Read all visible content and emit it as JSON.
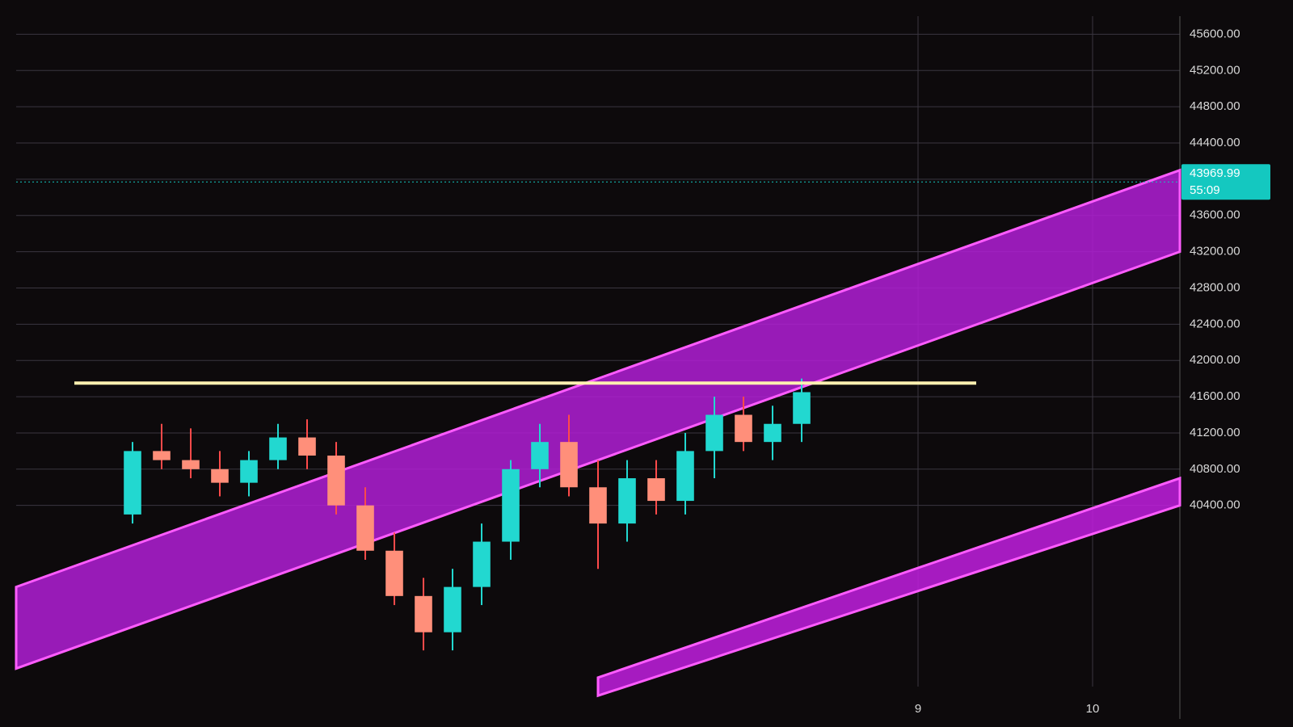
{
  "chart_data": {
    "type": "candlestick",
    "ylim": [
      38400,
      45800
    ],
    "yticks": [
      {
        "value": 40400,
        "label": "40400.00"
      },
      {
        "value": 40800,
        "label": "40800.00"
      },
      {
        "value": 41200,
        "label": "41200.00"
      },
      {
        "value": 41600,
        "label": "41600.00"
      },
      {
        "value": 42000,
        "label": "42000.00"
      },
      {
        "value": 42400,
        "label": "42400.00"
      },
      {
        "value": 42800,
        "label": "42800.00"
      },
      {
        "value": 43200,
        "label": "43200.00"
      },
      {
        "value": 43600,
        "label": "43600.00"
      },
      {
        "value": 44000,
        "label": "44000.00"
      },
      {
        "value": 44400,
        "label": "44400.00"
      },
      {
        "value": 44800,
        "label": "44800.00"
      },
      {
        "value": 45200,
        "label": "45200.00"
      },
      {
        "value": 45600,
        "label": "45600.00"
      }
    ],
    "xlim": [
      0,
      40
    ],
    "xticks": [
      {
        "value": 31,
        "label": "9"
      },
      {
        "value": 37,
        "label": "10"
      }
    ],
    "grid": true,
    "up_color": "#22d8d0",
    "down_color": "#ff8f7a",
    "down_wick_color": "#ff4a4a",
    "candles": [
      {
        "x": 4,
        "open": 40300,
        "high": 41100,
        "low": 40200,
        "close": 41000
      },
      {
        "x": 5,
        "open": 41000,
        "high": 41300,
        "low": 40800,
        "close": 40900
      },
      {
        "x": 6,
        "open": 40900,
        "high": 41250,
        "low": 40700,
        "close": 40800
      },
      {
        "x": 7,
        "open": 40800,
        "high": 41000,
        "low": 40500,
        "close": 40650
      },
      {
        "x": 8,
        "open": 40650,
        "high": 41000,
        "low": 40500,
        "close": 40900
      },
      {
        "x": 9,
        "open": 40900,
        "high": 41300,
        "low": 40800,
        "close": 41150
      },
      {
        "x": 10,
        "open": 41150,
        "high": 41350,
        "low": 40800,
        "close": 40950
      },
      {
        "x": 11,
        "open": 40950,
        "high": 41100,
        "low": 40300,
        "close": 40400
      },
      {
        "x": 12,
        "open": 40400,
        "high": 40600,
        "low": 39800,
        "close": 39900
      },
      {
        "x": 13,
        "open": 39900,
        "high": 40100,
        "low": 39300,
        "close": 39400
      },
      {
        "x": 14,
        "open": 39400,
        "high": 39600,
        "low": 38800,
        "close": 39000
      },
      {
        "x": 15,
        "open": 39000,
        "high": 39700,
        "low": 38800,
        "close": 39500
      },
      {
        "x": 16,
        "open": 39500,
        "high": 40200,
        "low": 39300,
        "close": 40000
      },
      {
        "x": 17,
        "open": 40000,
        "high": 40900,
        "low": 39800,
        "close": 40800
      },
      {
        "x": 18,
        "open": 40800,
        "high": 41300,
        "low": 40600,
        "close": 41100
      },
      {
        "x": 19,
        "open": 41100,
        "high": 41400,
        "low": 40500,
        "close": 40600
      },
      {
        "x": 20,
        "open": 40600,
        "high": 40900,
        "low": 39700,
        "close": 40200
      },
      {
        "x": 21,
        "open": 40200,
        "high": 40900,
        "low": 40000,
        "close": 40700
      },
      {
        "x": 22,
        "open": 40700,
        "high": 40900,
        "low": 40300,
        "close": 40450
      },
      {
        "x": 23,
        "open": 40450,
        "high": 41200,
        "low": 40300,
        "close": 41000
      },
      {
        "x": 24,
        "open": 41000,
        "high": 41600,
        "low": 40700,
        "close": 41400
      },
      {
        "x": 25,
        "open": 41400,
        "high": 41600,
        "low": 41000,
        "close": 41100
      },
      {
        "x": 26,
        "open": 41100,
        "high": 41500,
        "low": 40900,
        "close": 41300
      },
      {
        "x": 27,
        "open": 41300,
        "high": 41800,
        "low": 41100,
        "close": 41650
      }
    ],
    "level": 41750,
    "level_color": "#fff0b0",
    "channels": [
      {
        "x": [
          0,
          40
        ],
        "upper": [
          39500,
          44100
        ],
        "lower": [
          38600,
          43200
        ],
        "color": "#b21ed6"
      },
      {
        "x": [
          20,
          40
        ],
        "upper": [
          38500,
          40700
        ],
        "lower": [
          38300,
          40400
        ],
        "color": "#c21ee0"
      }
    ],
    "price": {
      "value": 43969.99,
      "label": "43969.99"
    },
    "countdown": "55:09",
    "price_color": "#14c8c0"
  }
}
